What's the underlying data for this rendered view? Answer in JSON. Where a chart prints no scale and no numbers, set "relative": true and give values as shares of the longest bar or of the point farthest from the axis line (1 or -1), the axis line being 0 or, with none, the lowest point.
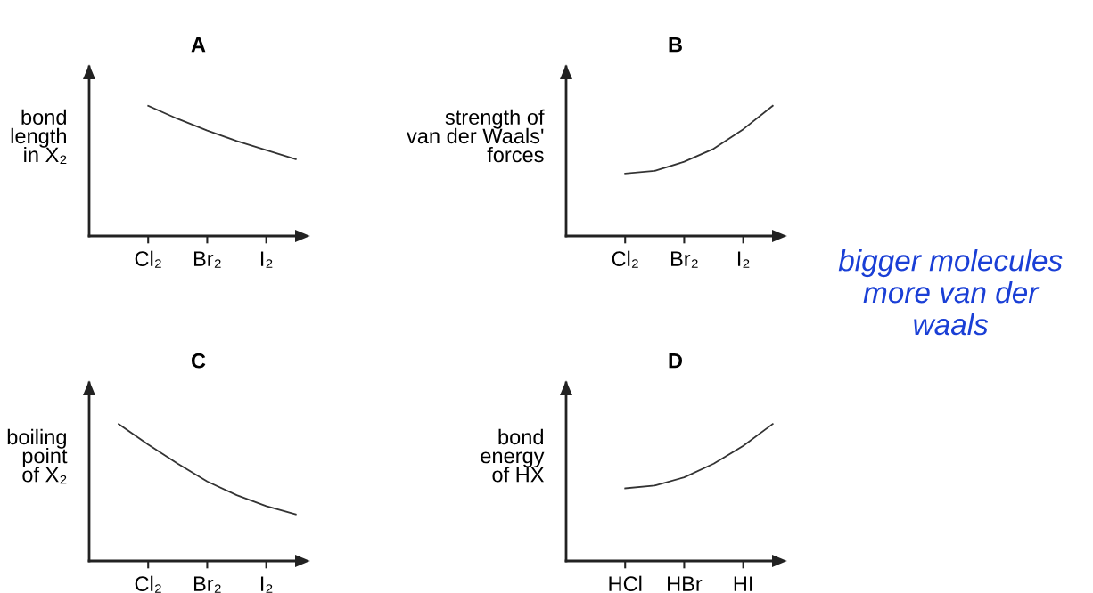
{
  "chart_data": [
    {
      "type": "line",
      "title": "A",
      "ylabel": "bond\nlength\nin X₂",
      "relative": true,
      "tick_labels": "x",
      "categories": [
        null,
        "Cl₂",
        null,
        "Br₂",
        null,
        "I₂",
        null
      ],
      "series": [
        {
          "color": "#333333",
          "values": [
            null,
            1,
            0.9,
            0.81,
            0.73,
            0.66,
            0.59
          ]
        }
      ]
    },
    {
      "type": "line",
      "title": "B",
      "ylabel": "strength of\nvan der Waals'\nforces",
      "relative": true,
      "tick_labels": "x",
      "categories": [
        null,
        "Cl₂",
        null,
        "Br₂",
        null,
        "I₂",
        null
      ],
      "series": [
        {
          "color": "#333333",
          "values": [
            null,
            0.48,
            0.5,
            0.57,
            0.67,
            0.82,
            1
          ]
        }
      ],
      "annotations": [
        "bigger molecules\nmore van der\nwaals"
      ]
    },
    {
      "type": "line",
      "title": "C",
      "ylabel": "boiling\npoint\nof X₂",
      "relative": true,
      "tick_labels": "x",
      "categories": [
        null,
        "Cl₂",
        null,
        "Br₂",
        null,
        "I₂",
        null
      ],
      "series": [
        {
          "color": "#333333",
          "values": [
            1,
            0.85,
            0.71,
            0.58,
            0.48,
            0.4,
            0.34
          ]
        }
      ]
    },
    {
      "type": "line",
      "title": "D",
      "ylabel": "bond\nenergy\nof HX",
      "relative": true,
      "tick_labels": "x",
      "categories": [
        null,
        "HCl",
        null,
        "HBr",
        null,
        "HI",
        null
      ],
      "series": [
        {
          "color": "#333333",
          "values": [
            null,
            0.53,
            0.55,
            0.61,
            0.71,
            0.84,
            1
          ]
        }
      ]
    }
  ]
}
